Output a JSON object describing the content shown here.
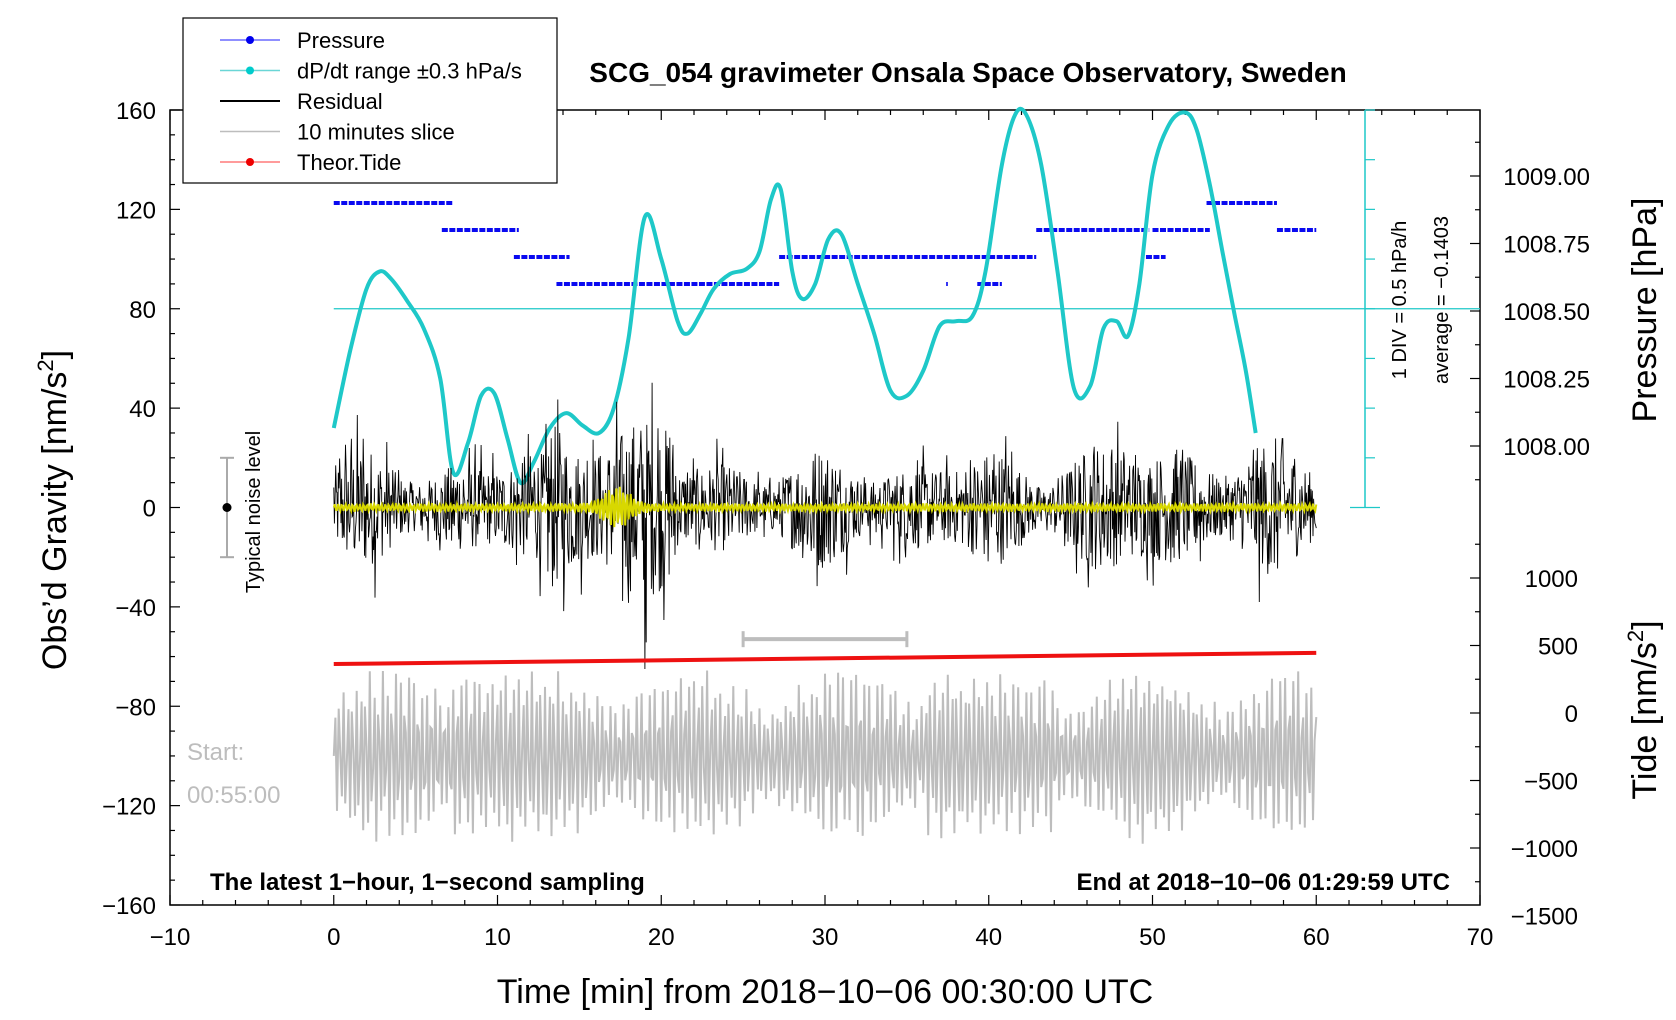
{
  "chart_data": {
    "type": "line",
    "title": "SCG_054 gravimeter Onsala Space Observatory, Sweden",
    "xlabel": "Time [min] from 2018−10−06 00:30:00 UTC",
    "ylabel_left_main": "Obs’d Gravity [nm/s",
    "ylabel_left_sup": "2",
    "ylabel_left_close": "]",
    "ylabel_right_pressure": "Pressure [hPa]",
    "ylabel_right_tide_main": "Tide [nm/s",
    "ylabel_right_tide_sup": "2",
    "ylabel_right_tide_close": "]",
    "xlim": [
      -10,
      70
    ],
    "ylim": [
      -160,
      160
    ],
    "x_ticks": [
      "−10",
      "0",
      "10",
      "20",
      "30",
      "40",
      "50",
      "60",
      "70"
    ],
    "x_tick_values": [
      -10,
      0,
      10,
      20,
      30,
      40,
      50,
      60,
      70
    ],
    "y_ticks": [
      "160",
      "120",
      "80",
      "40",
      "0",
      "−40",
      "−80",
      "−120",
      "−160"
    ],
    "y_tick_values": [
      160,
      120,
      80,
      40,
      0,
      -40,
      -80,
      -120,
      -160
    ],
    "pressure_ticks": [
      "1009.00",
      "1008.75",
      "1008.50",
      "1008.25",
      "1008.00"
    ],
    "pressure_tick_values": [
      1009.0,
      1008.75,
      1008.5,
      1008.25,
      1008.0
    ],
    "tide_ticks": [
      "1000",
      "500",
      "0",
      "−500",
      "−1000",
      "−1500"
    ],
    "tide_tick_values": [
      1000,
      500,
      0,
      -500,
      -1000,
      -1500
    ],
    "legend": [
      {
        "label": "Pressure",
        "color": "#0000ee",
        "line": "#6a6aff"
      },
      {
        "label": "dP/dt range ±0.3 hPa/s",
        "color": "#00cccc",
        "line": "#6ad6d6"
      },
      {
        "label": "Residual",
        "color": "#000000",
        "line": "#000000"
      },
      {
        "label": "10 minutes slice",
        "color": "#bdbdbd",
        "line": "#bdbdbd"
      },
      {
        "label": "Theor.Tide",
        "color": "#ee0000",
        "line": "#ff7a7a"
      }
    ],
    "colors": {
      "pressure": "#0a0af0",
      "dpdt": "#1ec8c8",
      "residual": "#000000",
      "filtered": "#d8d800",
      "slice": "#bdbdbd",
      "tide": "#ee1111"
    },
    "pressure_segments": [
      {
        "x0": 0.0,
        "x1": 7.3,
        "p": 1008.9
      },
      {
        "x0": 6.6,
        "x1": 11.3,
        "p": 1008.8
      },
      {
        "x0": 11.0,
        "x1": 14.4,
        "p": 1008.7
      },
      {
        "x0": 13.6,
        "x1": 27.2,
        "p": 1008.6
      },
      {
        "x0": 27.2,
        "x1": 42.9,
        "p": 1008.7
      },
      {
        "x0": 37.4,
        "x1": 37.5,
        "p": 1008.6
      },
      {
        "x0": 39.3,
        "x1": 40.8,
        "p": 1008.6
      },
      {
        "x0": 42.9,
        "x1": 49.8,
        "p": 1008.8
      },
      {
        "x0": 49.6,
        "x1": 50.8,
        "p": 1008.7
      },
      {
        "x0": 50.0,
        "x1": 53.5,
        "p": 1008.8
      },
      {
        "x0": 53.3,
        "x1": 57.6,
        "p": 1008.9
      },
      {
        "x0": 57.6,
        "x1": 60.0,
        "p": 1008.8
      }
    ],
    "dpdt_curve": {
      "x": [
        0,
        1,
        2,
        2.8,
        3.5,
        4.5,
        5.5,
        6.5,
        7.3,
        8.2,
        9.0,
        9.8,
        10.6,
        11.4,
        12.2,
        13.2,
        14.2,
        15.2,
        16.2,
        17.1,
        18.0,
        19.0,
        20.0,
        21.0,
        21.6,
        22.4,
        23.2,
        24.2,
        25.2,
        26.0,
        26.7,
        27.3,
        28.0,
        28.6,
        29.4,
        30.2,
        31.0,
        32.0,
        33.0,
        34.0,
        35.0,
        36.0,
        37.0,
        38.0,
        39.0,
        39.8,
        40.8,
        41.6,
        42.3,
        43.2,
        44.2,
        45.2,
        46.2,
        47.0,
        47.8,
        48.5,
        49.2,
        50.0,
        51.0,
        52.0,
        52.7,
        53.5,
        54.3,
        55.0,
        55.7,
        56.3
      ],
      "y": [
        32,
        63,
        88,
        95,
        92,
        83,
        72,
        52,
        14,
        26,
        45,
        46,
        28,
        10,
        18,
        32,
        38,
        33,
        30,
        40,
        68,
        117,
        100,
        75,
        70,
        78,
        88,
        94,
        96,
        103,
        124,
        128,
        95,
        84,
        90,
        108,
        110,
        90,
        70,
        47,
        45,
        55,
        73,
        75,
        77,
        95,
        138,
        158,
        158,
        138,
        95,
        48,
        49,
        72,
        75,
        69,
        90,
        134,
        154,
        159,
        152,
        130,
        102,
        78,
        55,
        30
      ]
    },
    "dpdt_reference_level": 80,
    "dpdt_scale_label": "1 DIV = 0.5 hPa/h",
    "dpdt_average_label": "average = −0.1403",
    "noise_label": "Typical noise level",
    "noise_level": {
      "center": 0,
      "low": -20,
      "high": 20
    },
    "residual": {
      "x_start": 0,
      "x_end": 60,
      "typical_amplitude": 25,
      "max_amplitude": 65,
      "event_time": 19.0
    },
    "filtered": {
      "x_start": 0,
      "x_end": 60,
      "event_start": 14.5,
      "event_end": 21.5,
      "event_peak": 17.3,
      "event_amplitude": 7
    },
    "tide_curve": {
      "x": [
        0,
        60
      ],
      "y": [
        -63,
        -58.5
      ]
    },
    "slice_window": {
      "x0": 25,
      "x1": 35,
      "y": -53
    },
    "slice_trace": {
      "x_start": 0,
      "x_end": 60,
      "center": -100,
      "max_amplitude": 36
    },
    "start_label": "Start:",
    "start_time": "00:55:00",
    "footer_left": "The latest 1−hour, 1−second sampling",
    "footer_right": "End at 2018−10−06 01:29:59 UTC"
  }
}
